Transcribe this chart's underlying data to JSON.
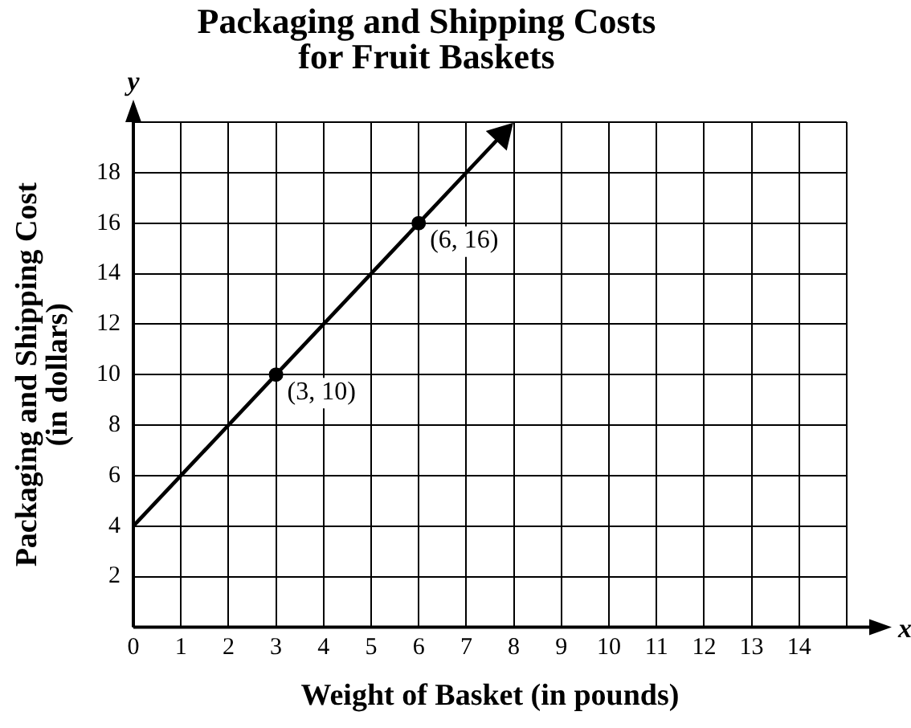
{
  "chart_data": {
    "type": "line",
    "title": "Packaging and Shipping Costs\nfor Fruit Baskets",
    "xlabel": "Weight of Basket (in pounds)",
    "ylabel": "Packaging and Shipping Cost\n(in dollars)",
    "series": [
      {
        "type": "line",
        "color": "#000000",
        "x": [
          0,
          3,
          6,
          7.75
        ],
        "values": [
          4,
          10,
          16,
          19.5
        ],
        "marker": "none"
      },
      {
        "type": "scatter",
        "color": "#000000",
        "x": [
          3,
          6
        ],
        "values": [
          10,
          16
        ],
        "marker": "circle"
      }
    ],
    "annotations": [
      "y",
      "x",
      {
        "text": "(3, 10)",
        "x": 3,
        "y": 10
      },
      {
        "text": "(6, 16)",
        "x": 6,
        "y": 16
      }
    ],
    "xlim": [
      0,
      15
    ],
    "xticks": [
      0,
      1,
      2,
      3,
      4,
      5,
      6,
      7,
      8,
      9,
      10,
      11,
      12,
      13,
      14,
      {
        "value": 15,
        "label": null
      }
    ],
    "ylim": [
      0,
      20
    ],
    "yticks": [
      {
        "value": 0,
        "label": null
      },
      2,
      4,
      6,
      8,
      10,
      12,
      14,
      16,
      18,
      {
        "value": 20,
        "label": null
      }
    ],
    "grid": true,
    "legend": false
  }
}
